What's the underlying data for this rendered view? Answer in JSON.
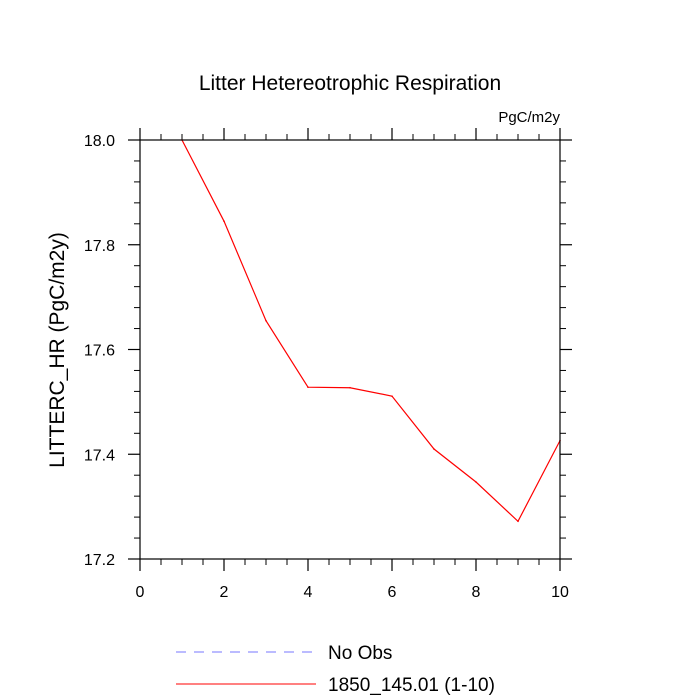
{
  "chart_data": {
    "type": "line",
    "title": "Litter Hetereotrophic Respiration",
    "units_label": "PgC/m2y",
    "xlabel": "",
    "ylabel": "LITTERC_HR  (PgC/m2y)",
    "xlim": [
      0,
      10
    ],
    "ylim": [
      17.2,
      18.0
    ],
    "x_ticks": [
      0,
      2,
      4,
      6,
      8,
      10
    ],
    "x_tick_labels": [
      "0",
      "2",
      "4",
      "6",
      "8",
      "10"
    ],
    "y_ticks": [
      17.2,
      17.4,
      17.6,
      17.8,
      18.0
    ],
    "y_tick_labels": [
      "17.2",
      "17.4",
      "17.6",
      "17.8",
      "18.0"
    ],
    "x_minor_step": 0.5,
    "y_minor_step": 0.04,
    "grid": false,
    "legend_position": "bottom-center",
    "series": [
      {
        "name": "No Obs",
        "color": "#7777ff",
        "style": "dashed",
        "x": [],
        "values": []
      },
      {
        "name": "1850_145.01 (1-10)",
        "color": "#ff0000",
        "style": "solid",
        "x": [
          1,
          2,
          3,
          4,
          5,
          6,
          7,
          8,
          9,
          10
        ],
        "values": [
          18.0,
          17.845,
          17.655,
          17.528,
          17.527,
          17.511,
          17.41,
          17.347,
          17.272,
          17.426
        ]
      }
    ]
  }
}
